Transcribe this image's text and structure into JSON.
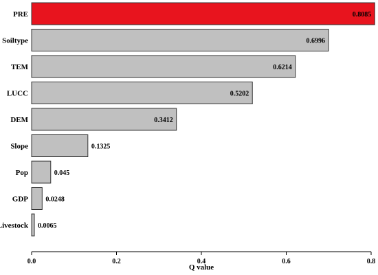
{
  "chart_data": {
    "type": "bar",
    "orientation": "horizontal",
    "categories": [
      "PRE",
      "Soiltype",
      "TEM",
      "LUCC",
      "DEM",
      "Slope",
      "Pop",
      "GDP",
      "Livestock"
    ],
    "values": [
      0.8085,
      0.6996,
      0.6214,
      0.5202,
      0.3412,
      0.1325,
      0.045,
      0.0248,
      0.0065
    ],
    "value_labels": [
      "0.8085",
      "0.6996",
      "0.6214",
      "0.5202",
      "0.3412",
      "0.1325",
      "0.045",
      "0.0248",
      "0.0065"
    ],
    "xlabel": "Q value",
    "xlim": [
      0,
      0.8
    ],
    "xticks": [
      "0.0",
      "0.2",
      "0.4",
      "0.6",
      "0.8"
    ],
    "grid": false,
    "colors": {
      "highlight": "#e8141e",
      "default": "#c0c0c0",
      "outline": "#333333"
    },
    "highlight_index": 0
  }
}
